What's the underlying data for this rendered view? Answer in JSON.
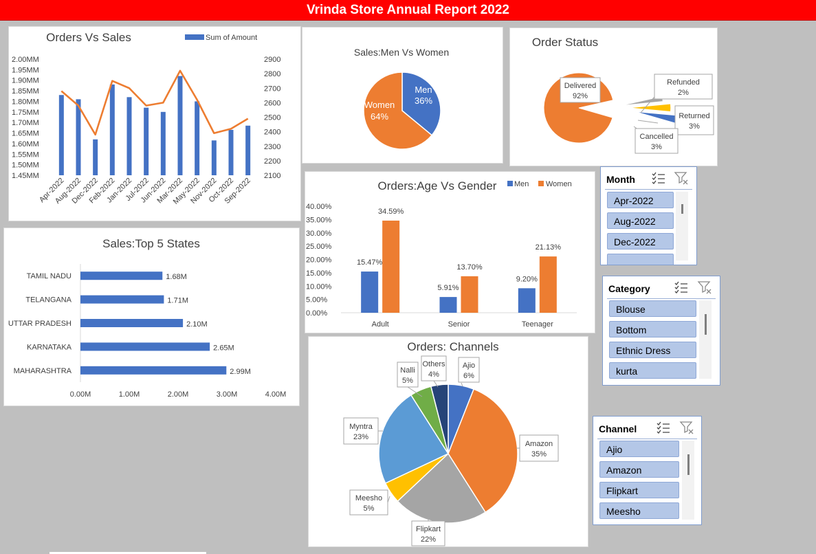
{
  "banner": {
    "title": "Vrinda Store Annual Report 2022"
  },
  "chart_data": [
    {
      "id": "orders_vs_sales",
      "type": "bar+line",
      "title": "Orders Vs Sales",
      "legend": "Sum of Amount",
      "categories": [
        "Apr-2022",
        "Aug-2022",
        "Dec-2022",
        "Feb-2022",
        "Jan-2022",
        "Jul-2022",
        "Jun-2022",
        "Mar-2022",
        "May-2022",
        "Nov-2022",
        "Oct-2022",
        "Sep-2022"
      ],
      "bar_values": [
        1.83,
        1.81,
        1.62,
        1.88,
        1.82,
        1.77,
        1.75,
        1.92,
        1.8,
        1.615,
        1.665,
        1.685
      ],
      "line_values": [
        2680,
        2580,
        2380,
        2750,
        2700,
        2580,
        2600,
        2820,
        2620,
        2390,
        2420,
        2490
      ],
      "y_left_ticks": [
        "2.00MM",
        "1.95MM",
        "1.90MM",
        "1.85MM",
        "1.80MM",
        "1.75MM",
        "1.70MM",
        "1.65MM",
        "1.60MM",
        "1.55MM",
        "1.50MM",
        "1.45MM"
      ],
      "y_right_ticks": [
        "2900",
        "2800",
        "2700",
        "2600",
        "2500",
        "2400",
        "2300",
        "2200",
        "2100"
      ],
      "y_left_range": [
        1.45,
        2.0
      ],
      "y_right_range": [
        2100,
        2900
      ],
      "colors": {
        "bar": "#4472c4",
        "line": "#ed7d31"
      }
    },
    {
      "id": "sales_men_women",
      "type": "pie",
      "title": "Sales:Men Vs Women",
      "slices": [
        {
          "label": "Men",
          "pct": "36%",
          "value": 36,
          "color": "#4472c4"
        },
        {
          "label": "Women",
          "pct": "64%",
          "value": 64,
          "color": "#ed7d31"
        }
      ]
    },
    {
      "id": "order_status",
      "type": "pie",
      "title": "Order Status",
      "slices": [
        {
          "label": "Delivered",
          "pct": "92%",
          "value": 92,
          "color": "#ed7d31"
        },
        {
          "label": "Refunded",
          "pct": "2%",
          "value": 2,
          "color": "#a5a5a5"
        },
        {
          "label": "Returned",
          "pct": "3%",
          "value": 3,
          "color": "#ffc000"
        },
        {
          "label": "Cancelled",
          "pct": "3%",
          "value": 3,
          "color": "#4472c4"
        }
      ]
    },
    {
      "id": "top5_states",
      "type": "bar",
      "orientation": "horizontal",
      "title": "Sales:Top 5 States",
      "categories": [
        "TAMIL NADU",
        "TELANGANA",
        "UTTAR PRADESH",
        "KARNATAKA",
        "MAHARASHTRA"
      ],
      "values": [
        1.68,
        1.71,
        2.1,
        2.65,
        2.99
      ],
      "labels": [
        "1.68M",
        "1.71M",
        "2.10M",
        "2.65M",
        "2.99M"
      ],
      "x_ticks": [
        "0.00M",
        "1.00M",
        "2.00M",
        "3.00M",
        "4.00M"
      ],
      "xlim": [
        0,
        4
      ],
      "color": "#4472c4"
    },
    {
      "id": "age_vs_gender",
      "type": "bar",
      "title": "Orders:Age Vs Gender",
      "categories": [
        "Adult",
        "Senior",
        "Teenager"
      ],
      "series": [
        {
          "name": "Men",
          "values": [
            15.47,
            5.91,
            9.2
          ],
          "labels": [
            "15.47%",
            "5.91%",
            "9.20%"
          ],
          "color": "#4472c4"
        },
        {
          "name": "Women",
          "values": [
            34.59,
            13.7,
            21.13
          ],
          "labels": [
            "34.59%",
            "13.70%",
            "21.13%"
          ],
          "color": "#ed7d31"
        }
      ],
      "y_ticks": [
        "40.00%",
        "35.00%",
        "30.00%",
        "25.00%",
        "20.00%",
        "15.00%",
        "10.00%",
        "5.00%",
        "0.00%"
      ],
      "ylim": [
        0,
        40
      ]
    },
    {
      "id": "channels",
      "type": "pie",
      "title": "Orders: Channels",
      "slices": [
        {
          "label": "Ajio",
          "pct": "6%",
          "value": 6,
          "color": "#4472c4"
        },
        {
          "label": "Amazon",
          "pct": "35%",
          "value": 35,
          "color": "#ed7d31"
        },
        {
          "label": "Flipkart",
          "pct": "22%",
          "value": 22,
          "color": "#a5a5a5"
        },
        {
          "label": "Meesho",
          "pct": "5%",
          "value": 5,
          "color": "#ffc000"
        },
        {
          "label": "Myntra",
          "pct": "23%",
          "value": 23,
          "color": "#5b9bd5"
        },
        {
          "label": "Nalli",
          "pct": "5%",
          "value": 5,
          "color": "#70ad47"
        },
        {
          "label": "Others",
          "pct": "4%",
          "value": 4,
          "color": "#264478"
        }
      ]
    }
  ],
  "slicers": {
    "month": {
      "title": "Month",
      "items": [
        "Apr-2022",
        "Aug-2022",
        "Dec-2022"
      ]
    },
    "category": {
      "title": "Category",
      "items": [
        "Blouse",
        "Bottom",
        "Ethnic Dress",
        "kurta"
      ]
    },
    "channel": {
      "title": "Channel",
      "items": [
        "Ajio",
        "Amazon",
        "Flipkart",
        "Meesho"
      ]
    }
  }
}
